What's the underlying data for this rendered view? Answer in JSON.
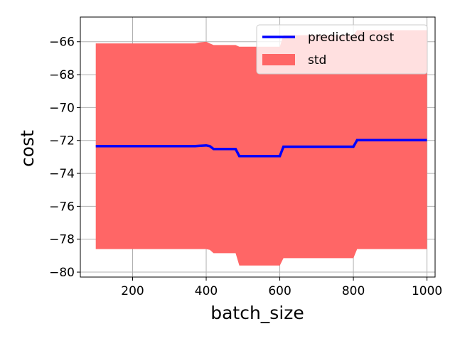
{
  "chart_data": {
    "type": "line",
    "title": "",
    "xlabel": "batch_size",
    "ylabel": "cost",
    "xlim": [
      58,
      1022
    ],
    "ylim": [
      -80.3,
      -64.5
    ],
    "grid": true,
    "legend": {
      "placement": "top-right",
      "entries": [
        "predicted cost",
        "std"
      ]
    },
    "x_ticks": [
      200,
      400,
      600,
      800,
      1000
    ],
    "x_tick_labels": [
      "200",
      "400",
      "600",
      "800",
      "1000"
    ],
    "y_ticks": [
      -80,
      -78,
      -76,
      -74,
      -72,
      -70,
      -68,
      -66
    ],
    "y_tick_labels": [
      "−80",
      "−78",
      "−76",
      "−74",
      "−72",
      "−70",
      "−68",
      "−66"
    ],
    "x": [
      100,
      370,
      380,
      400,
      410,
      420,
      470,
      480,
      490,
      590,
      600,
      610,
      620,
      790,
      800,
      810,
      820,
      1000
    ],
    "series": [
      {
        "name": "predicted cost",
        "color": "#0000ff",
        "values": [
          -72.35,
          -72.35,
          -72.33,
          -72.3,
          -72.35,
          -72.52,
          -72.52,
          -72.52,
          -72.95,
          -72.95,
          -72.95,
          -72.38,
          -72.38,
          -72.38,
          -72.38,
          -71.98,
          -71.98,
          -71.98
        ]
      }
    ],
    "band": {
      "name": "std",
      "color": "#ff6666",
      "upper": [
        -66.1,
        -66.1,
        -66.05,
        -66.0,
        -66.1,
        -66.2,
        -66.2,
        -66.2,
        -66.3,
        -66.3,
        -66.3,
        -65.6,
        -65.6,
        -65.6,
        -65.6,
        -65.3,
        -65.3,
        -65.3
      ],
      "lower": [
        -78.6,
        -78.6,
        -78.6,
        -78.6,
        -78.65,
        -78.85,
        -78.85,
        -78.85,
        -79.6,
        -79.6,
        -79.6,
        -79.15,
        -79.15,
        -79.15,
        -79.15,
        -78.6,
        -78.6,
        -78.6
      ]
    }
  }
}
